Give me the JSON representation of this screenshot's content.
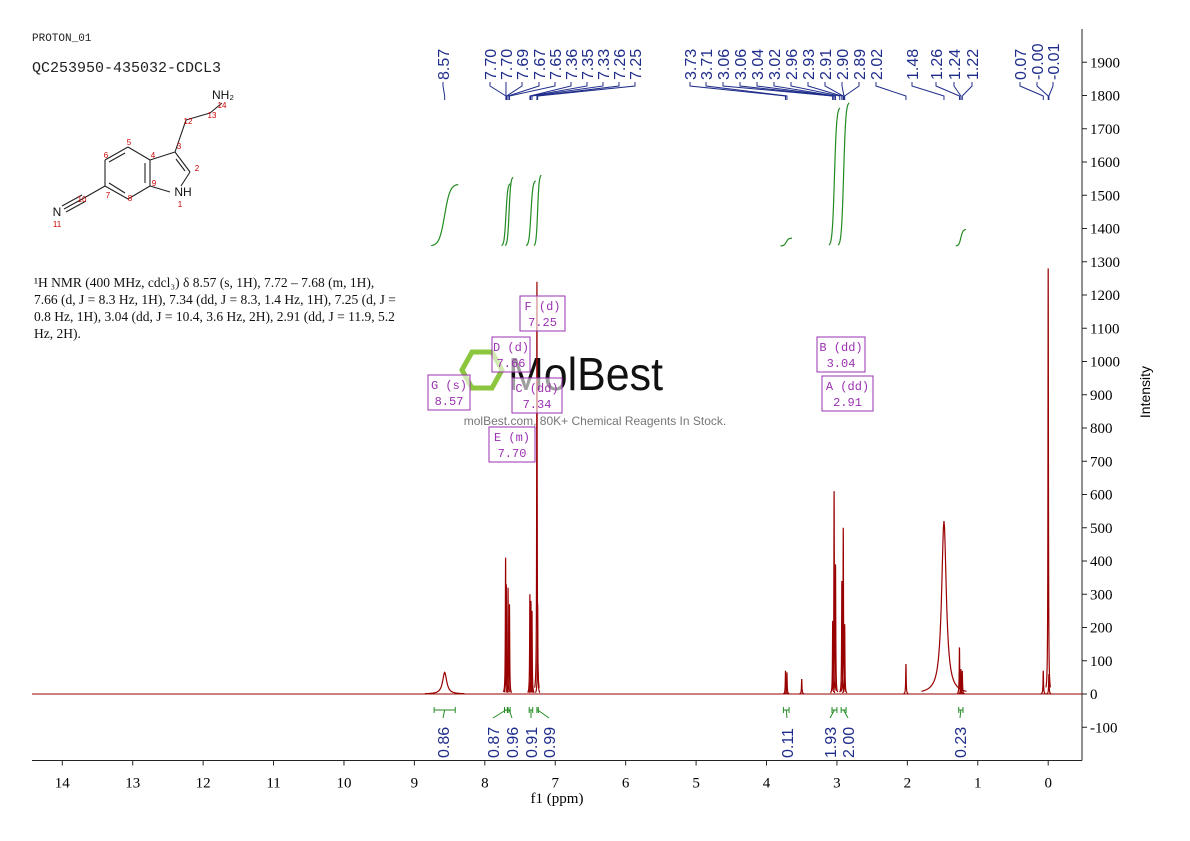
{
  "header": {
    "experiment": "PROTON_01",
    "sample": "QC253950-435032-CDCL3"
  },
  "structure": {
    "atom_labels": [
      "NH₂",
      "14",
      "13",
      "12",
      "3",
      "2",
      "NH",
      "1",
      "9",
      "4",
      "5",
      "6",
      "7",
      "8",
      "10",
      "N",
      "11"
    ]
  },
  "description": "¹H NMR (400 MHz, cdcl₃) δ 8.57 (s, 1H), 7.72 – 7.68 (m, 1H), 7.66 (d, J = 8.3 Hz, 1H), 7.34 (dd, J = 8.3, 1.4 Hz, 1H), 7.25 (d, J = 0.8 Hz, 1H), 3.04 (dd, J = 10.4, 3.6 Hz, 2H), 2.91 (dd, J = 11.9, 5.2 Hz, 2H).",
  "watermark": {
    "brand": "MolBest",
    "tagline": "molBest.com, 80K+ Chemical Reagents In Stock."
  },
  "chart_data": {
    "type": "spectrum",
    "xlabel": "f1 (ppm)",
    "ylabel": "Intensity",
    "color": "#990000",
    "xlim": [
      14.43,
      -0.48
    ],
    "ylim": [
      -200,
      2000
    ],
    "xticks": [
      14,
      13,
      12,
      11,
      10,
      9,
      8,
      7,
      6,
      5,
      4,
      3,
      2,
      1,
      0
    ],
    "yticks": [
      -100,
      0,
      100,
      200,
      300,
      400,
      500,
      600,
      700,
      800,
      900,
      1000,
      1100,
      1200,
      1300,
      1400,
      1500,
      1600,
      1700,
      1800,
      1900
    ],
    "x": [
      8.57,
      7.705,
      7.695,
      7.67,
      7.65,
      7.36,
      7.345,
      7.33,
      7.26,
      7.25,
      3.73,
      3.71,
      3.5,
      3.06,
      3.04,
      3.02,
      2.93,
      2.91,
      2.89,
      2.02,
      1.48,
      1.26,
      1.24,
      1.22,
      0.07,
      0,
      -0.01
    ],
    "values": [
      65,
      410,
      330,
      320,
      270,
      300,
      280,
      250,
      1240,
      270,
      70,
      65,
      45,
      220,
      610,
      390,
      340,
      500,
      210,
      90,
      520,
      140,
      75,
      70,
      70,
      1280,
      60
    ],
    "peak_labels": [
      8.57,
      {
        "value": 7.7,
        "label": "7.70"
      },
      {
        "value": 7.7,
        "label": "7.70"
      },
      7.69,
      7.67,
      7.65,
      7.36,
      7.35,
      7.33,
      7.26,
      7.25,
      3.73,
      3.71,
      3.06,
      3.06,
      3.04,
      3.02,
      2.96,
      2.93,
      2.91,
      {
        "value": 2.9,
        "label": "2.90"
      },
      2.89,
      2.02,
      1.48,
      1.26,
      1.24,
      1.22,
      0.07,
      {
        "value": 0,
        "label": "-0.00"
      },
      -0.01
    ],
    "integrals": [
      {
        "range": [
          8.72,
          8.42
        ],
        "value": 0.86
      },
      {
        "range": [
          7.72,
          7.68
        ],
        "value": 0.87
      },
      {
        "range": [
          7.67,
          7.64
        ],
        "value": 0.96
      },
      {
        "range": [
          7.37,
          7.32
        ],
        "value": 0.91
      },
      {
        "range": [
          7.26,
          7.24
        ],
        "value": 0.99
      },
      {
        "range": [
          3.76,
          3.68
        ],
        "value": 0.11
      },
      {
        "range": [
          3.07,
          3.0
        ],
        "value": 1.93
      },
      {
        "range": [
          2.94,
          2.87
        ],
        "value": 2,
        "label": "2.00"
      },
      {
        "range": [
          1.27,
          1.21
        ],
        "value": 0.23
      }
    ],
    "multiplets": [
      {
        "name": "G (s)",
        "shift": "8.57"
      },
      {
        "name": "D (d)",
        "shift": "7.66"
      },
      {
        "name": "F (d)",
        "shift": "7.25"
      },
      {
        "name": "C (dd)",
        "shift": "7.34"
      },
      {
        "name": "E (m)",
        "shift": "7.70"
      },
      {
        "name": "B (dd)",
        "shift": "3.04"
      },
      {
        "name": "A (dd)",
        "shift": "2.91"
      }
    ]
  }
}
